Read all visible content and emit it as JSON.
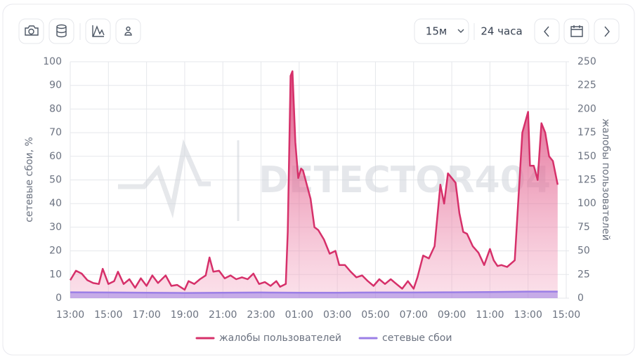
{
  "toolbar": {
    "interval": "15м",
    "range": "24 часа"
  },
  "watermark": "DETECTOR404",
  "chart_data": {
    "type": "line",
    "ylabel": "сетевые сбои, %",
    "y2label": "жалобы пользователей",
    "xlim": [
      0,
      26
    ],
    "xticks": [
      {
        "value": 0,
        "label": "13:00"
      },
      {
        "value": 2,
        "label": "15:00"
      },
      {
        "value": 4,
        "label": "17:00"
      },
      {
        "value": 6,
        "label": "19:00"
      },
      {
        "value": 8,
        "label": "21:00"
      },
      {
        "value": 10,
        "label": "23:00"
      },
      {
        "value": 12,
        "label": "01:00"
      },
      {
        "value": 14,
        "label": "03:00"
      },
      {
        "value": 16,
        "label": "05:00"
      },
      {
        "value": 18,
        "label": "07:00"
      },
      {
        "value": 20,
        "label": "09:00"
      },
      {
        "value": 22,
        "label": "11:00"
      },
      {
        "value": 24,
        "label": "13:00"
      },
      {
        "value": 26,
        "label": "15:00"
      }
    ],
    "ylim": [
      0,
      100
    ],
    "yticks": [
      0,
      10,
      20,
      30,
      40,
      50,
      60,
      70,
      80,
      90,
      100
    ],
    "y2lim": [
      0,
      250
    ],
    "y2ticks": [
      0,
      25,
      50,
      75,
      100,
      125,
      150,
      175,
      200,
      225,
      250
    ],
    "grid": true,
    "legend": "bottom",
    "series": [
      {
        "name": "жалобы пользователей",
        "color": "#d6306a",
        "axis": "y2",
        "x": [
          0,
          0.3,
          0.6,
          0.9,
          1.2,
          1.5,
          1.7,
          2.0,
          2.3,
          2.5,
          2.8,
          3.1,
          3.4,
          3.7,
          4.0,
          4.3,
          4.6,
          5.0,
          5.3,
          5.6,
          6.0,
          6.2,
          6.5,
          6.8,
          7.1,
          7.3,
          7.5,
          7.8,
          8.1,
          8.4,
          8.7,
          9.0,
          9.3,
          9.6,
          9.9,
          10.2,
          10.5,
          10.8,
          11.0,
          11.3,
          11.4,
          11.55,
          11.65,
          11.8,
          11.95,
          12.1,
          12.2,
          12.4,
          12.6,
          12.8,
          13.0,
          13.3,
          13.6,
          13.9,
          14.1,
          14.4,
          14.7,
          15.0,
          15.3,
          15.6,
          15.9,
          16.2,
          16.5,
          16.8,
          17.1,
          17.4,
          17.7,
          18.0,
          18.2,
          18.5,
          18.8,
          19.1,
          19.4,
          19.6,
          19.8,
          20.0,
          20.2,
          20.4,
          20.6,
          20.8,
          21.1,
          21.4,
          21.7,
          22.0,
          22.2,
          22.4,
          22.6,
          22.9,
          23.3,
          23.7,
          24.0,
          24.1,
          24.3,
          24.5,
          24.7,
          24.9,
          25.1,
          25.3,
          25.55
        ],
        "values": [
          19,
          29,
          26,
          19,
          16,
          15,
          31,
          15,
          18,
          28,
          15,
          20,
          11,
          21,
          13,
          24,
          16,
          24,
          13,
          14,
          9,
          18,
          15,
          20,
          24,
          43,
          28,
          29,
          21,
          24,
          20,
          22,
          20,
          26,
          15,
          17,
          13,
          18,
          12,
          15,
          70,
          235,
          240,
          165,
          127,
          137,
          135,
          120,
          105,
          75,
          72,
          62,
          47,
          50,
          35,
          35,
          28,
          22,
          24,
          18,
          13,
          20,
          15,
          20,
          15,
          10,
          18,
          10,
          22,
          45,
          42,
          55,
          120,
          100,
          132,
          127,
          122,
          90,
          70,
          68,
          55,
          48,
          35,
          52,
          40,
          34,
          35,
          33,
          40,
          175,
          197,
          140,
          140,
          125,
          185,
          175,
          150,
          145,
          120
        ]
      },
      {
        "name": "сетевые сбои",
        "color": "#9b7fe6",
        "axis": "y",
        "x": [
          0,
          2,
          4,
          6,
          8,
          10,
          12,
          14,
          16,
          18,
          20,
          22,
          24,
          25.55
        ],
        "values": [
          2.5,
          2.4,
          2.3,
          2.2,
          2.3,
          2.4,
          2.3,
          2.3,
          2.4,
          2.4,
          2.5,
          2.6,
          2.8,
          2.8
        ]
      }
    ]
  }
}
